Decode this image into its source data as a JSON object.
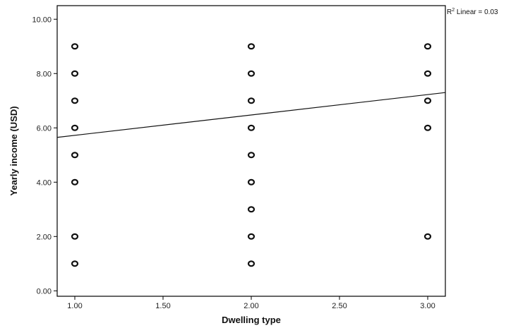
{
  "chart_data": {
    "type": "scatter",
    "xlabel": "Dwelling type",
    "ylabel": "Yearly income (USD)",
    "xlim": [
      0.9,
      3.1
    ],
    "ylim": [
      -0.2,
      10.5
    ],
    "xticks": [
      1.0,
      1.5,
      2.0,
      2.5,
      3.0
    ],
    "xtick_labels": [
      "1.00",
      "1.50",
      "2.00",
      "2.50",
      "3.00"
    ],
    "yticks": [
      0,
      2,
      4,
      6,
      8,
      10
    ],
    "ytick_labels": [
      "0.00",
      "2.00",
      "4.00",
      "6.00",
      "8.00",
      "10.00"
    ],
    "grid": false,
    "points": [
      {
        "x": 1,
        "y": 9
      },
      {
        "x": 1,
        "y": 8
      },
      {
        "x": 1,
        "y": 7
      },
      {
        "x": 1,
        "y": 6
      },
      {
        "x": 1,
        "y": 5
      },
      {
        "x": 1,
        "y": 4
      },
      {
        "x": 1,
        "y": 2
      },
      {
        "x": 1,
        "y": 1
      },
      {
        "x": 2,
        "y": 9
      },
      {
        "x": 2,
        "y": 8
      },
      {
        "x": 2,
        "y": 7
      },
      {
        "x": 2,
        "y": 6
      },
      {
        "x": 2,
        "y": 5
      },
      {
        "x": 2,
        "y": 4
      },
      {
        "x": 2,
        "y": 3
      },
      {
        "x": 2,
        "y": 2
      },
      {
        "x": 2,
        "y": 1
      },
      {
        "x": 3,
        "y": 9
      },
      {
        "x": 3,
        "y": 8
      },
      {
        "x": 3,
        "y": 7
      },
      {
        "x": 3,
        "y": 6
      },
      {
        "x": 3,
        "y": 2
      }
    ],
    "fit_line": {
      "x": [
        0.9,
        3.1
      ],
      "y": [
        5.65,
        7.3
      ]
    },
    "annotation": {
      "prefix": "R",
      "superscript": "2",
      "text": " Linear = 0.03"
    },
    "colors": {
      "marker": "#111111",
      "line": "#111111",
      "plot_bg": "#ffffff"
    }
  }
}
